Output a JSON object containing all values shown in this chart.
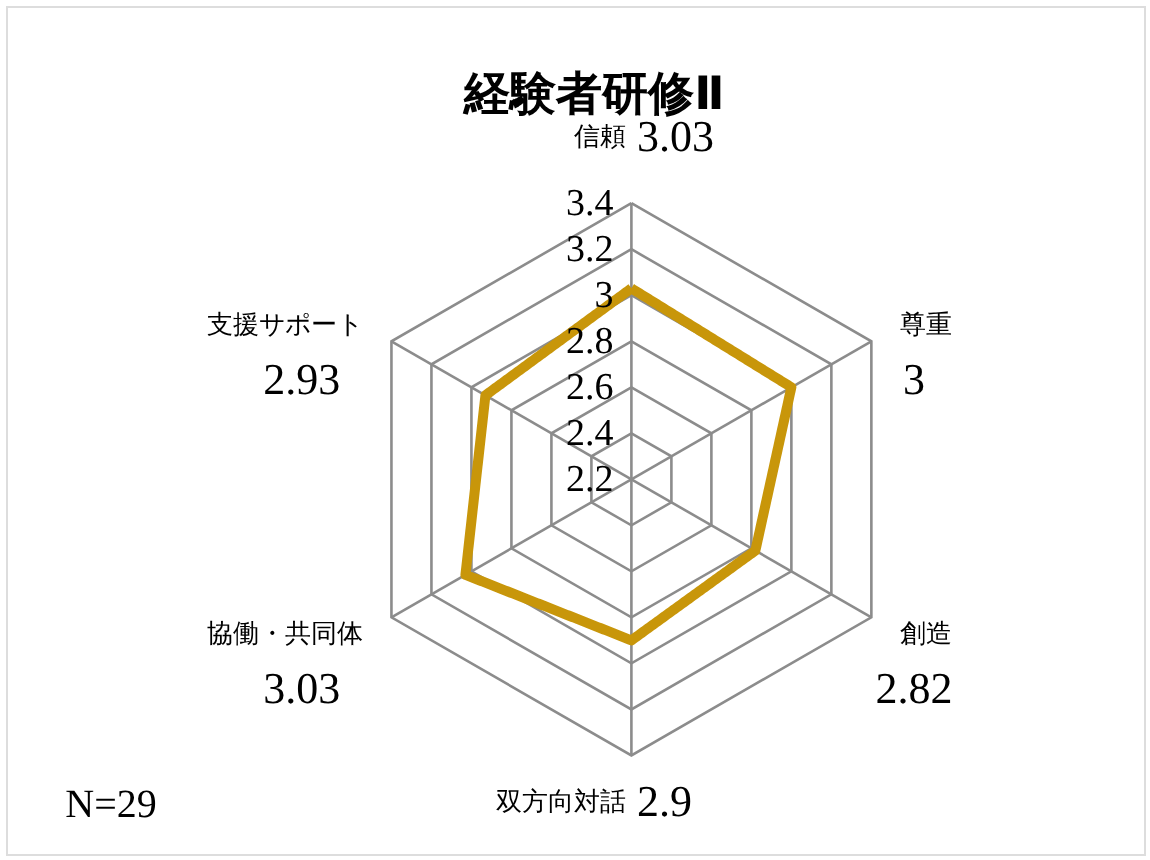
{
  "chart_data": {
    "type": "radar",
    "title": "経験者研修Ⅱ",
    "categories": [
      "信頼",
      "尊重",
      "創造",
      "双方向対話",
      "協働・共同体",
      "支援サポート"
    ],
    "series": [
      {
        "color": "#c8960a",
        "values": [
          3.03,
          3,
          2.82,
          2.9,
          3.03,
          2.93
        ]
      }
    ],
    "ylim": [
      2.2,
      3.4
    ],
    "yticks": [
      2.2,
      2.4,
      2.6,
      2.8,
      3,
      3.2,
      3.4
    ],
    "grid": true,
    "marker": "none",
    "line_style": "solid",
    "annotations": [
      "N=29",
      "3.03",
      "3",
      "2.82",
      "2.9",
      "3.03",
      "2.93"
    ]
  }
}
